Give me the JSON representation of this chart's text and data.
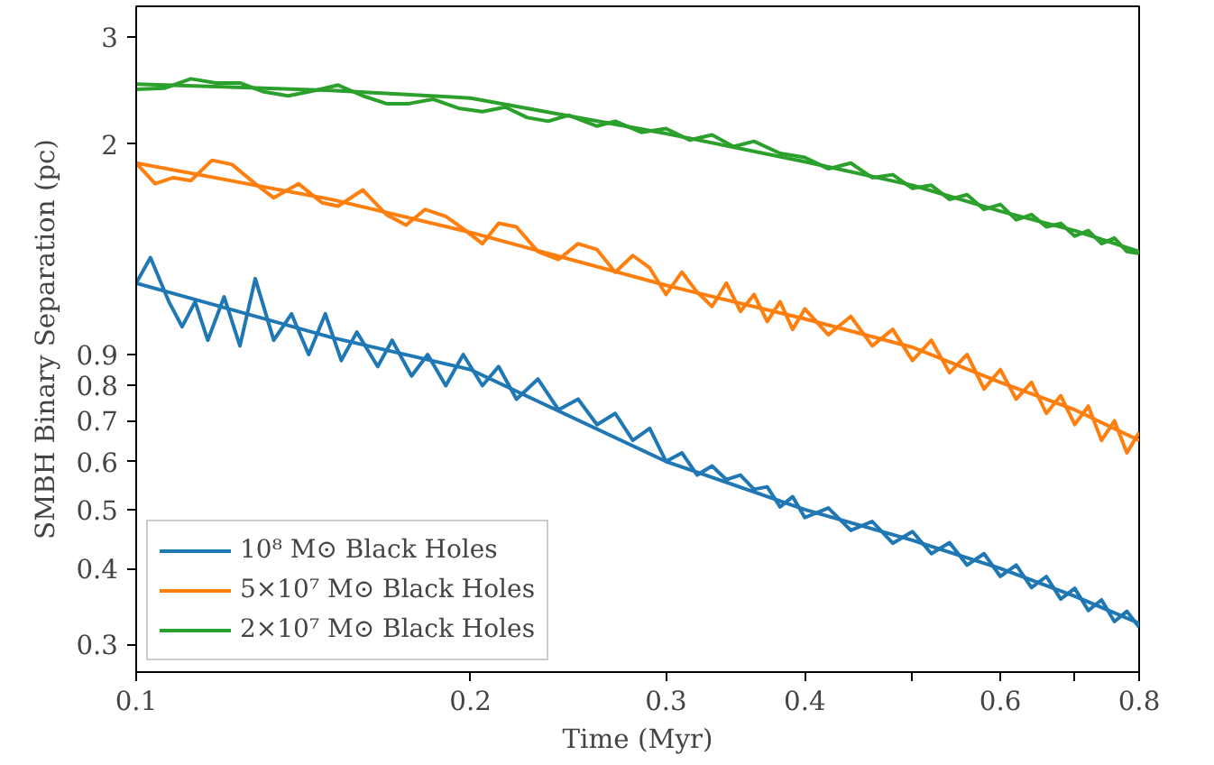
{
  "chart_data": {
    "type": "line",
    "xlabel": "Time (Myr)",
    "ylabel": "SMBH Binary Separation (pc)",
    "log": "xy",
    "grid": false,
    "legend": "bottom left",
    "xlim": [
      0.1,
      0.8
    ],
    "ylim": [
      0.27,
      3.37
    ],
    "xticks": [
      0.1,
      0.2,
      0.3,
      0.4,
      {
        "value": 0.5,
        "label": null
      },
      0.6,
      {
        "value": 0.7,
        "label": null
      },
      0.8
    ],
    "yticks": [
      0.3,
      0.4,
      0.5,
      0.6,
      0.7,
      0.8,
      0.9,
      2,
      3
    ],
    "series": [
      {
        "name": "10⁸ M⊙ Black Holes",
        "color": "#1f77b4",
        "x": [
          0.1,
          0.103,
          0.107,
          0.11,
          0.113,
          0.116,
          0.12,
          0.124,
          0.128,
          0.133,
          0.138,
          0.143,
          0.148,
          0.153,
          0.158,
          0.165,
          0.17,
          0.177,
          0.183,
          0.19,
          0.197,
          0.205,
          0.212,
          0.22,
          0.23,
          0.24,
          0.25,
          0.26,
          0.27,
          0.28,
          0.29,
          0.3,
          0.31,
          0.32,
          0.33,
          0.34,
          0.35,
          0.36,
          0.37,
          0.38,
          0.39,
          0.4,
          0.42,
          0.44,
          0.46,
          0.48,
          0.5,
          0.52,
          0.54,
          0.56,
          0.58,
          0.6,
          0.62,
          0.64,
          0.66,
          0.68,
          0.7,
          0.72,
          0.74,
          0.76,
          0.78,
          0.8
        ],
        "values": [
          1.18,
          1.3,
          1.1,
          1.0,
          1.1,
          0.95,
          1.12,
          0.93,
          1.2,
          0.95,
          1.05,
          0.9,
          1.05,
          0.88,
          0.98,
          0.86,
          0.95,
          0.83,
          0.9,
          0.8,
          0.9,
          0.8,
          0.86,
          0.76,
          0.82,
          0.73,
          0.76,
          0.69,
          0.72,
          0.65,
          0.68,
          0.6,
          0.62,
          0.57,
          0.59,
          0.56,
          0.57,
          0.54,
          0.545,
          0.505,
          0.525,
          0.485,
          0.503,
          0.462,
          0.478,
          0.44,
          0.46,
          0.423,
          0.441,
          0.405,
          0.423,
          0.388,
          0.405,
          0.372,
          0.388,
          0.356,
          0.371,
          0.341,
          0.355,
          0.327,
          0.34,
          0.32
        ]
      },
      {
        "color": "#1f77b4",
        "x": [
          0.1,
          0.15,
          0.2,
          0.3,
          0.4,
          0.5,
          0.6,
          0.7,
          0.8
        ],
        "values": [
          1.18,
          0.96,
          0.85,
          0.6,
          0.5,
          0.445,
          0.4,
          0.36,
          0.325
        ]
      },
      {
        "name": "5×10⁷ M⊙ Black Holes",
        "color": "#ff7f0e",
        "x": [
          0.1,
          0.104,
          0.108,
          0.112,
          0.117,
          0.122,
          0.128,
          0.133,
          0.14,
          0.147,
          0.152,
          0.16,
          0.168,
          0.175,
          0.182,
          0.19,
          0.197,
          0.205,
          0.212,
          0.22,
          0.23,
          0.24,
          0.25,
          0.26,
          0.27,
          0.28,
          0.29,
          0.3,
          0.31,
          0.32,
          0.33,
          0.34,
          0.35,
          0.36,
          0.37,
          0.38,
          0.39,
          0.4,
          0.42,
          0.44,
          0.46,
          0.48,
          0.5,
          0.52,
          0.54,
          0.56,
          0.58,
          0.6,
          0.62,
          0.64,
          0.66,
          0.68,
          0.7,
          0.72,
          0.74,
          0.76,
          0.78,
          0.8
        ],
        "values": [
          1.86,
          1.72,
          1.76,
          1.74,
          1.88,
          1.85,
          1.72,
          1.63,
          1.72,
          1.6,
          1.58,
          1.68,
          1.53,
          1.47,
          1.56,
          1.52,
          1.45,
          1.37,
          1.48,
          1.46,
          1.33,
          1.29,
          1.37,
          1.34,
          1.23,
          1.31,
          1.25,
          1.13,
          1.23,
          1.14,
          1.08,
          1.18,
          1.06,
          1.13,
          1.02,
          1.1,
          0.99,
          1.07,
          0.97,
          1.04,
          0.93,
          0.99,
          0.88,
          0.95,
          0.84,
          0.9,
          0.79,
          0.85,
          0.76,
          0.81,
          0.72,
          0.77,
          0.69,
          0.74,
          0.65,
          0.7,
          0.62,
          0.67
        ]
      },
      {
        "color": "#ff7f0e",
        "x": [
          0.1,
          0.15,
          0.2,
          0.3,
          0.4,
          0.5,
          0.6,
          0.7,
          0.8
        ],
        "values": [
          1.86,
          1.62,
          1.43,
          1.17,
          1.03,
          0.925,
          0.81,
          0.73,
          0.65
        ]
      },
      {
        "name": "2×10⁷ M⊙ Black Holes",
        "color": "#2ca02c",
        "x": [
          0.1,
          0.106,
          0.112,
          0.118,
          0.124,
          0.13,
          0.137,
          0.145,
          0.152,
          0.16,
          0.168,
          0.176,
          0.185,
          0.195,
          0.205,
          0.215,
          0.225,
          0.235,
          0.245,
          0.26,
          0.27,
          0.285,
          0.3,
          0.315,
          0.33,
          0.345,
          0.36,
          0.38,
          0.4,
          0.42,
          0.44,
          0.46,
          0.48,
          0.5,
          0.52,
          0.54,
          0.56,
          0.58,
          0.6,
          0.62,
          0.64,
          0.66,
          0.68,
          0.7,
          0.72,
          0.74,
          0.76,
          0.78,
          0.8
        ],
        "values": [
          2.46,
          2.47,
          2.56,
          2.52,
          2.52,
          2.44,
          2.4,
          2.45,
          2.5,
          2.4,
          2.33,
          2.33,
          2.37,
          2.29,
          2.26,
          2.3,
          2.21,
          2.18,
          2.23,
          2.14,
          2.18,
          2.09,
          2.12,
          2.03,
          2.07,
          1.98,
          2.02,
          1.93,
          1.9,
          1.82,
          1.86,
          1.76,
          1.78,
          1.69,
          1.71,
          1.62,
          1.65,
          1.56,
          1.59,
          1.5,
          1.53,
          1.46,
          1.48,
          1.41,
          1.44,
          1.37,
          1.4,
          1.33,
          1.32
        ]
      },
      {
        "color": "#2ca02c",
        "x": [
          0.1,
          0.15,
          0.2,
          0.3,
          0.4,
          0.5,
          0.6,
          0.7,
          0.8
        ],
        "values": [
          2.51,
          2.45,
          2.38,
          2.08,
          1.87,
          1.71,
          1.55,
          1.44,
          1.33
        ]
      }
    ]
  }
}
